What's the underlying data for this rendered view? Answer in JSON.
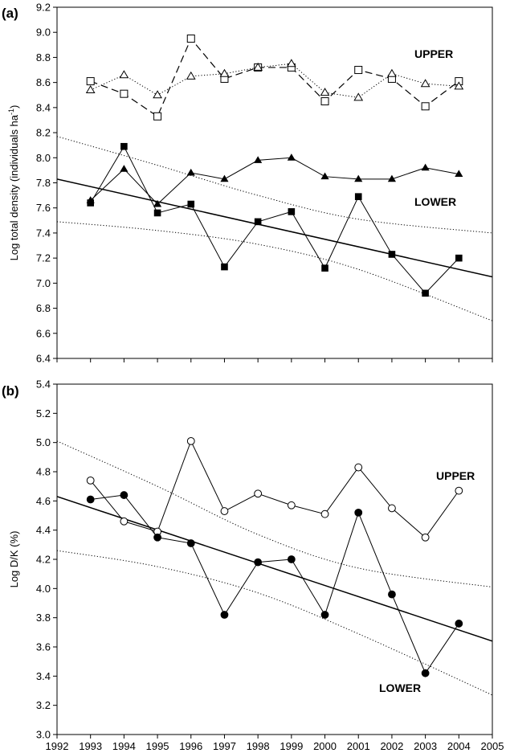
{
  "chart_data": [
    {
      "panel_label": "(a)",
      "type": "line",
      "ylabel": "Log total density (individuals ha",
      "ylabel_sup": "-1",
      "ylabel_close": ")",
      "ylim": [
        6.4,
        9.2
      ],
      "ytick_step": 0.2,
      "xlim": [
        1993,
        2004
      ],
      "annotations": [
        "UPPER",
        "LOWER"
      ],
      "series": [
        {
          "marker": "open-square",
          "line": "dashed",
          "group": "UPPER",
          "x": [
            1993,
            1994,
            1995,
            1996,
            1997,
            1998,
            1999,
            2000,
            2001,
            2002,
            2003,
            2004
          ],
          "values": [
            8.61,
            8.51,
            8.33,
            8.95,
            8.63,
            8.72,
            8.72,
            8.45,
            8.7,
            8.63,
            8.41,
            8.61
          ]
        },
        {
          "marker": "open-triangle",
          "line": "dotted",
          "group": "UPPER",
          "x": [
            1993,
            1994,
            1995,
            1996,
            1997,
            1998,
            1999,
            2000,
            2001,
            2002,
            2003,
            2004
          ],
          "values": [
            8.54,
            8.66,
            8.5,
            8.65,
            8.67,
            8.72,
            8.75,
            8.52,
            8.48,
            8.67,
            8.59,
            8.57
          ]
        },
        {
          "marker": "filled-square",
          "line": "solid",
          "group": "LOWER",
          "x": [
            1993,
            1994,
            1995,
            1996,
            1997,
            1998,
            1999,
            2000,
            2001,
            2002,
            2003,
            2004
          ],
          "values": [
            7.64,
            8.09,
            7.56,
            7.63,
            7.13,
            7.49,
            7.57,
            7.12,
            7.69,
            7.23,
            6.92,
            7.2
          ]
        },
        {
          "marker": "filled-triangle",
          "line": "solid",
          "group": "LOWER",
          "x": [
            1993,
            1994,
            1995,
            1996,
            1997,
            1998,
            1999,
            2000,
            2001,
            2002,
            2003,
            2004
          ],
          "values": [
            7.66,
            7.91,
            7.63,
            7.88,
            7.83,
            7.98,
            8.0,
            7.85,
            7.83,
            7.83,
            7.92,
            7.87
          ]
        }
      ],
      "regression": {
        "x": [
          1992,
          2005
        ],
        "y": [
          7.83,
          7.05
        ]
      },
      "confidence_band": {
        "upper": {
          "x": [
            1992,
            1995,
            1998,
            2001,
            2005
          ],
          "y": [
            8.17,
            7.94,
            7.7,
            7.51,
            7.4
          ]
        },
        "lower": {
          "x": [
            1992,
            1995,
            1998,
            2001,
            2005
          ],
          "y": [
            7.49,
            7.42,
            7.31,
            7.11,
            6.7
          ]
        }
      }
    },
    {
      "panel_label": "(b)",
      "type": "line",
      "ylabel": "Log D/K (%)",
      "ylim": [
        3.0,
        5.4
      ],
      "ytick_step": 0.2,
      "xlim": [
        1992,
        2005
      ],
      "xticks": [
        1992,
        1993,
        1994,
        1995,
        1996,
        1997,
        1998,
        1999,
        2000,
        2001,
        2002,
        2003,
        2004,
        2005
      ],
      "annotations": [
        "UPPER",
        "LOWER"
      ],
      "series": [
        {
          "marker": "open-circle",
          "line": "solid",
          "group": "UPPER",
          "x": [
            1993,
            1994,
            1995,
            1996,
            1997,
            1998,
            1999,
            2000,
            2001,
            2002,
            2003,
            2004
          ],
          "values": [
            4.74,
            4.46,
            4.39,
            5.01,
            4.53,
            4.65,
            4.57,
            4.51,
            4.83,
            4.55,
            4.35,
            4.67
          ]
        },
        {
          "marker": "filled-circle",
          "line": "solid",
          "group": "LOWER",
          "x": [
            1993,
            1994,
            1995,
            1996,
            1997,
            1998,
            1999,
            2000,
            2001,
            2002,
            2003,
            2004
          ],
          "values": [
            4.61,
            4.64,
            4.35,
            4.31,
            3.82,
            4.18,
            4.2,
            3.82,
            4.52,
            3.96,
            3.42,
            3.76
          ]
        }
      ],
      "regression": {
        "x": [
          1992,
          2005
        ],
        "y": [
          4.63,
          3.64
        ]
      },
      "confidence_band": {
        "upper": {
          "x": [
            1992,
            1995,
            1998,
            2001,
            2005
          ],
          "y": [
            5.01,
            4.7,
            4.37,
            4.14,
            4.01
          ]
        },
        "lower": {
          "x": [
            1992,
            1995,
            1998,
            2001,
            2005
          ],
          "y": [
            4.26,
            4.15,
            3.97,
            3.69,
            3.27
          ]
        }
      }
    }
  ]
}
